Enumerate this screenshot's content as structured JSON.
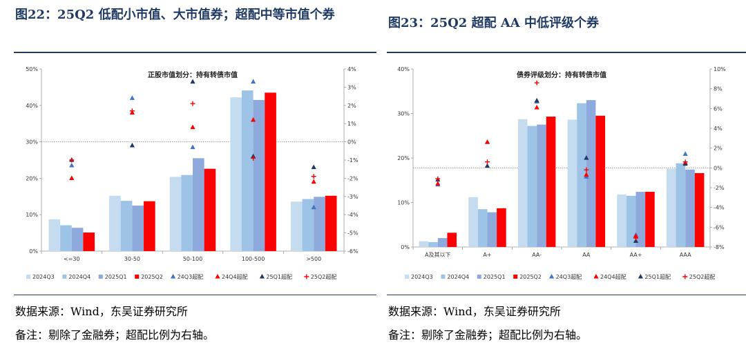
{
  "left": {
    "figure_title": "图22：25Q2 低配小市值、大市值券；超配中等市值个券",
    "source": "数据来源：Wind，东吴证券研究所",
    "note": "备注：剔除了金融券；超配比例为右轴。"
  },
  "right": {
    "figure_title": "图23：25Q2 超配 AA 中低评级个券",
    "source": "数据来源：Wind，东吴证券研究所",
    "note": "备注：剔除了金融券；超配比例为右轴。"
  },
  "colors": {
    "2024Q3": "#c5dcf0",
    "2024Q4": "#9dc3e6",
    "2025Q1": "#8ea9db",
    "2025Q2": "#ff0000",
    "24Q3超配": "#4472c4",
    "24Q4超配": "#ff0000",
    "25Q1超配": "#1f3864",
    "25Q2超配": "#ff0000",
    "title": "#1f3a63"
  },
  "chart_data": [
    {
      "type": "bar",
      "title": "正股市值划分：持有转债市值",
      "categories": [
        "<=30",
        "30-50",
        "50-100",
        "100-500",
        ">500"
      ],
      "y_left": {
        "min": 0,
        "max": 50,
        "step": 10,
        "unit": "%"
      },
      "y_right": {
        "min": -6,
        "max": 4,
        "step": 1,
        "unit": "%"
      },
      "bar_series": [
        {
          "name": "2024Q3",
          "values": [
            8.7,
            15.2,
            20.4,
            42.2,
            13.6
          ]
        },
        {
          "name": "2024Q4",
          "values": [
            7.1,
            13.8,
            20.9,
            44.1,
            14.3
          ]
        },
        {
          "name": "2025Q1",
          "values": [
            6.4,
            12.5,
            25.5,
            41.5,
            14.9
          ]
        },
        {
          "name": "2025Q2",
          "values": [
            5.1,
            13.7,
            22.6,
            43.5,
            15.2
          ]
        }
      ],
      "marker_series": [
        {
          "name": "24Q3超配",
          "marker": "triangle",
          "values": [
            -1.3,
            2.4,
            -0.3,
            3.3,
            -3.6
          ]
        },
        {
          "name": "24Q4超配",
          "marker": "triangle",
          "values": [
            -2.0,
            1.6,
            0.8,
            1.2,
            -2.2
          ]
        },
        {
          "name": "25Q1超配",
          "marker": "triangle",
          "values": [
            -1.0,
            -0.2,
            3.3,
            -0.8,
            -1.4
          ]
        },
        {
          "name": "25Q2超配",
          "marker": "plus",
          "values": [
            -1.0,
            1.7,
            2.1,
            -0.9,
            -1.9
          ]
        }
      ],
      "legend": [
        "2024Q3",
        "2024Q4",
        "2025Q1",
        "2025Q2",
        "24Q3超配",
        "24Q4超配",
        "25Q1超配",
        "25Q2超配"
      ]
    },
    {
      "type": "bar",
      "title": "债券评级划分：持有转债市值",
      "categories": [
        "A及其以下",
        "A+",
        "AA-",
        "AA",
        "AA+",
        "AAA"
      ],
      "y_left": {
        "min": 0,
        "max": 40,
        "step": 10,
        "unit": "%"
      },
      "y_right": {
        "min": -8,
        "max": 10,
        "step": 2,
        "unit": "%"
      },
      "bar_series": [
        {
          "name": "2024Q3",
          "values": [
            1.3,
            11.2,
            28.7,
            28.6,
            11.8,
            17.6
          ]
        },
        {
          "name": "2024Q4",
          "values": [
            1.1,
            8.5,
            27.2,
            32.3,
            11.5,
            18.8
          ]
        },
        {
          "name": "2025Q1",
          "values": [
            2.0,
            7.8,
            27.5,
            33.0,
            12.4,
            17.4
          ]
        },
        {
          "name": "2025Q2",
          "values": [
            3.2,
            8.7,
            29.3,
            29.5,
            12.4,
            16.6
          ]
        }
      ],
      "marker_series": [
        {
          "name": "24Q3超配",
          "marker": "triangle",
          "values": [
            -1.7,
            2.6,
            6.7,
            -0.9,
            -6.8,
            1.4
          ]
        },
        {
          "name": "24Q4超配",
          "marker": "triangle",
          "values": [
            -1.6,
            2.6,
            6.1,
            -0.7,
            -6.9,
            0.5
          ]
        },
        {
          "name": "25Q1超配",
          "marker": "triangle",
          "values": [
            -1.2,
            0.2,
            6.8,
            1.0,
            -7.4,
            0.4
          ]
        },
        {
          "name": "25Q2超配",
          "marker": "plus",
          "values": [
            -1.1,
            0.6,
            8.6,
            -0.2,
            -7.1,
            0.6
          ]
        }
      ],
      "legend": [
        "2024Q3",
        "2024Q4",
        "2025Q1",
        "2025Q2",
        "24Q3超配",
        "24Q4超配",
        "25Q1超配",
        "25Q2超配"
      ]
    }
  ]
}
